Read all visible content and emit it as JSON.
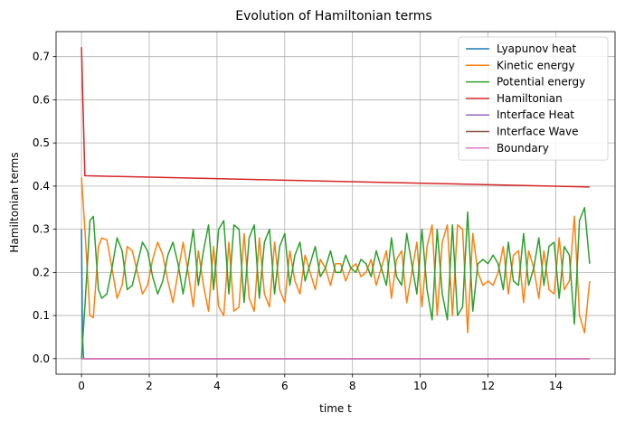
{
  "chart_data": {
    "type": "line",
    "title": "Evolution of Hamiltonian terms",
    "xlabel": "time t",
    "ylabel": "Hamiltonian terms",
    "xlim": [
      -0.75,
      15.75
    ],
    "ylim": [
      -0.036,
      0.758
    ],
    "xticks": [
      0,
      2,
      4,
      6,
      8,
      10,
      12,
      14
    ],
    "yticks": [
      0.0,
      0.1,
      0.2,
      0.3,
      0.4,
      0.5,
      0.6,
      0.7
    ],
    "grid": true,
    "legend_position": "top-right",
    "series": [
      {
        "name": "Lyapunov heat",
        "color": "#1f77b4",
        "x": [
          0,
          0.03,
          0.06,
          0.1,
          15
        ],
        "y": [
          0.3,
          0.05,
          0.002,
          0.0,
          0.0
        ]
      },
      {
        "name": "Kinetic energy",
        "color": "#ff7f0e",
        "x": [
          0,
          0.1,
          0.25,
          0.35,
          0.5,
          0.6,
          0.75,
          0.9,
          1.05,
          1.2,
          1.35,
          1.5,
          1.65,
          1.8,
          1.95,
          2.1,
          2.25,
          2.4,
          2.55,
          2.7,
          2.85,
          3.0,
          3.15,
          3.3,
          3.45,
          3.6,
          3.75,
          3.9,
          4.05,
          4.2,
          4.35,
          4.5,
          4.65,
          4.8,
          4.95,
          5.1,
          5.25,
          5.4,
          5.55,
          5.7,
          5.85,
          6.0,
          6.15,
          6.3,
          6.45,
          6.6,
          6.75,
          6.9,
          7.05,
          7.2,
          7.35,
          7.5,
          7.65,
          7.8,
          7.95,
          8.1,
          8.25,
          8.4,
          8.55,
          8.7,
          8.85,
          9.0,
          9.15,
          9.3,
          9.45,
          9.6,
          9.75,
          9.9,
          10.05,
          10.2,
          10.35,
          10.5,
          10.65,
          10.8,
          10.95,
          11.1,
          11.25,
          11.4,
          11.55,
          11.7,
          11.85,
          12.0,
          12.15,
          12.3,
          12.45,
          12.6,
          12.75,
          12.9,
          13.05,
          13.2,
          13.35,
          13.5,
          13.65,
          13.8,
          13.95,
          14.1,
          14.25,
          14.4,
          14.55,
          14.7,
          14.85,
          15.0
        ],
        "y": [
          0.42,
          0.3,
          0.1,
          0.095,
          0.26,
          0.28,
          0.275,
          0.21,
          0.14,
          0.17,
          0.26,
          0.25,
          0.2,
          0.15,
          0.17,
          0.23,
          0.27,
          0.24,
          0.18,
          0.13,
          0.2,
          0.27,
          0.2,
          0.12,
          0.25,
          0.17,
          0.11,
          0.26,
          0.12,
          0.1,
          0.27,
          0.11,
          0.12,
          0.29,
          0.14,
          0.11,
          0.28,
          0.15,
          0.12,
          0.27,
          0.16,
          0.13,
          0.25,
          0.18,
          0.15,
          0.24,
          0.2,
          0.16,
          0.23,
          0.21,
          0.17,
          0.22,
          0.22,
          0.18,
          0.21,
          0.22,
          0.19,
          0.2,
          0.23,
          0.17,
          0.21,
          0.25,
          0.14,
          0.23,
          0.25,
          0.13,
          0.2,
          0.27,
          0.12,
          0.26,
          0.31,
          0.1,
          0.27,
          0.31,
          0.1,
          0.31,
          0.3,
          0.06,
          0.29,
          0.2,
          0.17,
          0.18,
          0.17,
          0.2,
          0.26,
          0.15,
          0.24,
          0.25,
          0.13,
          0.25,
          0.21,
          0.14,
          0.25,
          0.16,
          0.15,
          0.28,
          0.16,
          0.18,
          0.33,
          0.1,
          0.06,
          0.18
        ]
      },
      {
        "name": "Potential energy",
        "color": "#2ca02c",
        "x": [
          0,
          0.1,
          0.25,
          0.35,
          0.5,
          0.6,
          0.75,
          0.9,
          1.05,
          1.2,
          1.35,
          1.5,
          1.65,
          1.8,
          1.95,
          2.1,
          2.25,
          2.4,
          2.55,
          2.7,
          2.85,
          3.0,
          3.15,
          3.3,
          3.45,
          3.6,
          3.75,
          3.9,
          4.05,
          4.2,
          4.35,
          4.5,
          4.65,
          4.8,
          4.95,
          5.1,
          5.25,
          5.4,
          5.55,
          5.7,
          5.85,
          6.0,
          6.15,
          6.3,
          6.45,
          6.6,
          6.75,
          6.9,
          7.05,
          7.2,
          7.35,
          7.5,
          7.65,
          7.8,
          7.95,
          8.1,
          8.25,
          8.4,
          8.55,
          8.7,
          8.85,
          9.0,
          9.15,
          9.3,
          9.45,
          9.6,
          9.75,
          9.9,
          10.05,
          10.2,
          10.35,
          10.5,
          10.65,
          10.8,
          10.95,
          11.1,
          11.25,
          11.4,
          11.55,
          11.7,
          11.85,
          12.0,
          12.15,
          12.3,
          12.45,
          12.6,
          12.75,
          12.9,
          13.05,
          13.2,
          13.35,
          13.5,
          13.65,
          13.8,
          13.95,
          14.1,
          14.25,
          14.4,
          14.55,
          14.7,
          14.85,
          15.0
        ],
        "y": [
          0.0,
          0.12,
          0.32,
          0.33,
          0.16,
          0.14,
          0.15,
          0.21,
          0.28,
          0.25,
          0.16,
          0.17,
          0.22,
          0.27,
          0.25,
          0.19,
          0.15,
          0.18,
          0.24,
          0.27,
          0.22,
          0.15,
          0.22,
          0.3,
          0.17,
          0.25,
          0.31,
          0.16,
          0.3,
          0.32,
          0.15,
          0.31,
          0.3,
          0.13,
          0.28,
          0.31,
          0.14,
          0.27,
          0.3,
          0.15,
          0.26,
          0.29,
          0.17,
          0.24,
          0.27,
          0.18,
          0.22,
          0.26,
          0.19,
          0.21,
          0.25,
          0.2,
          0.2,
          0.24,
          0.21,
          0.2,
          0.23,
          0.22,
          0.19,
          0.25,
          0.21,
          0.17,
          0.28,
          0.19,
          0.17,
          0.29,
          0.22,
          0.15,
          0.3,
          0.16,
          0.09,
          0.3,
          0.15,
          0.09,
          0.31,
          0.1,
          0.12,
          0.34,
          0.11,
          0.22,
          0.23,
          0.22,
          0.24,
          0.22,
          0.16,
          0.27,
          0.18,
          0.17,
          0.29,
          0.17,
          0.21,
          0.28,
          0.17,
          0.26,
          0.27,
          0.14,
          0.26,
          0.24,
          0.08,
          0.32,
          0.35,
          0.22
        ]
      },
      {
        "name": "Hamiltonian",
        "color": "#d62728",
        "x": [
          0,
          0.1,
          15
        ],
        "y": [
          0.722,
          0.424,
          0.398
        ]
      },
      {
        "name": "Interface Heat",
        "color": "#9467bd",
        "x": [
          0,
          15
        ],
        "y": [
          0.0,
          0.0
        ]
      },
      {
        "name": "Interface Wave",
        "color": "#8c564b",
        "x": [
          0,
          15
        ],
        "y": [
          0.0,
          0.0
        ]
      },
      {
        "name": "Boundary",
        "color": "#e377c2",
        "x": [
          0,
          15
        ],
        "y": [
          0.0,
          0.0
        ]
      }
    ]
  }
}
